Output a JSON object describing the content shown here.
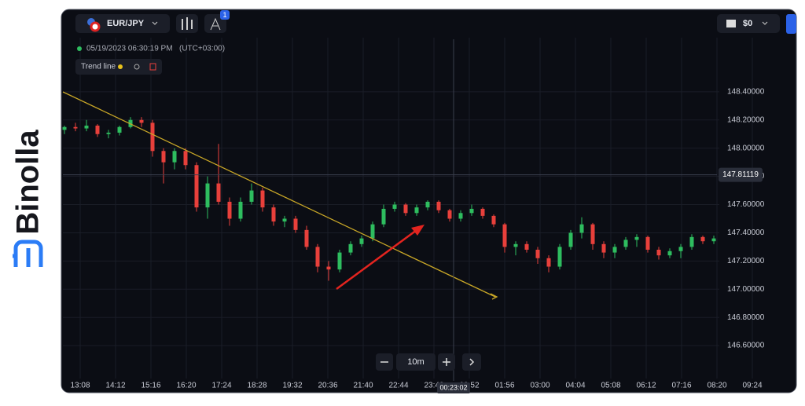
{
  "brand": "Binolla",
  "toolbar": {
    "pair": "EUR/JPY",
    "badge": "1",
    "balance": "$0"
  },
  "info": {
    "datetime": "05/19/2023 06:30:19 PM",
    "timezone": "(UTC+03:00)",
    "tool": "Trend line"
  },
  "zoom": {
    "interval": "10m"
  },
  "crosshair_time": "00:23:02",
  "chart_data": {
    "type": "candlestick",
    "up_color": "#2ebd5f",
    "down_color": "#e8403b",
    "ohlc": [
      [
        148.13,
        148.16,
        148.1,
        148.15
      ],
      [
        148.15,
        148.18,
        148.12,
        148.14
      ],
      [
        148.14,
        148.2,
        148.12,
        148.16
      ],
      [
        148.16,
        148.17,
        148.08,
        148.1
      ],
      [
        148.1,
        148.13,
        148.07,
        148.11
      ],
      [
        148.11,
        148.16,
        148.09,
        148.15
      ],
      [
        148.15,
        148.22,
        148.14,
        148.2
      ],
      [
        148.2,
        148.22,
        148.15,
        148.18
      ],
      [
        148.18,
        148.2,
        147.94,
        147.98
      ],
      [
        147.98,
        148.0,
        147.75,
        147.9
      ],
      [
        147.9,
        148.0,
        147.85,
        147.98
      ],
      [
        147.98,
        148.0,
        147.85,
        147.88
      ],
      [
        147.88,
        147.9,
        147.55,
        147.58
      ],
      [
        147.58,
        147.8,
        147.5,
        147.75
      ],
      [
        147.75,
        148.03,
        147.6,
        147.62
      ],
      [
        147.62,
        147.65,
        147.45,
        147.5
      ],
      [
        147.5,
        147.65,
        147.48,
        147.62
      ],
      [
        147.62,
        147.75,
        147.6,
        147.7
      ],
      [
        147.7,
        147.72,
        147.55,
        147.58
      ],
      [
        147.58,
        147.6,
        147.45,
        147.48
      ],
      [
        147.48,
        147.52,
        147.44,
        147.5
      ],
      [
        147.5,
        147.52,
        147.4,
        147.42
      ],
      [
        147.42,
        147.45,
        147.28,
        147.3
      ],
      [
        147.3,
        147.32,
        147.12,
        147.16
      ],
      [
        147.16,
        147.2,
        147.06,
        147.14
      ],
      [
        147.14,
        147.28,
        147.12,
        147.26
      ],
      [
        147.26,
        147.34,
        147.24,
        147.32
      ],
      [
        147.32,
        147.38,
        147.3,
        147.36
      ],
      [
        147.36,
        147.48,
        147.34,
        147.46
      ],
      [
        147.46,
        147.6,
        147.44,
        147.57
      ],
      [
        147.57,
        147.62,
        147.55,
        147.6
      ],
      [
        147.6,
        147.61,
        147.52,
        147.54
      ],
      [
        147.54,
        147.6,
        147.52,
        147.58
      ],
      [
        147.58,
        147.63,
        147.56,
        147.62
      ],
      [
        147.62,
        147.63,
        147.54,
        147.56
      ],
      [
        147.56,
        147.57,
        147.48,
        147.5
      ],
      [
        147.5,
        147.56,
        147.48,
        147.54
      ],
      [
        147.54,
        147.6,
        147.52,
        147.57
      ],
      [
        147.57,
        147.58,
        147.5,
        147.52
      ],
      [
        147.52,
        147.53,
        147.44,
        147.46
      ],
      [
        147.46,
        147.47,
        147.26,
        147.3
      ],
      [
        147.3,
        147.34,
        147.24,
        147.32
      ],
      [
        147.32,
        147.34,
        147.26,
        147.28
      ],
      [
        147.28,
        147.3,
        147.18,
        147.22
      ],
      [
        147.22,
        147.24,
        147.12,
        147.16
      ],
      [
        147.16,
        147.32,
        147.14,
        147.3
      ],
      [
        147.3,
        147.42,
        147.28,
        147.4
      ],
      [
        147.4,
        147.51,
        147.36,
        147.46
      ],
      [
        147.46,
        147.47,
        147.28,
        147.32
      ],
      [
        147.32,
        147.34,
        147.22,
        147.26
      ],
      [
        147.26,
        147.32,
        147.22,
        147.3
      ],
      [
        147.3,
        147.37,
        147.28,
        147.35
      ],
      [
        147.35,
        147.39,
        147.3,
        147.37
      ],
      [
        147.37,
        147.38,
        147.26,
        147.28
      ],
      [
        147.28,
        147.3,
        147.21,
        147.24
      ],
      [
        147.24,
        147.29,
        147.22,
        147.27
      ],
      [
        147.27,
        147.32,
        147.22,
        147.3
      ],
      [
        147.3,
        147.39,
        147.28,
        147.37
      ],
      [
        147.37,
        147.38,
        147.32,
        147.34
      ],
      [
        147.34,
        147.38,
        147.32,
        147.36
      ]
    ],
    "x_labels": [
      "13:08",
      "14:12",
      "15:16",
      "16:20",
      "17:24",
      "18:28",
      "19:32",
      "20:36",
      "21:40",
      "22:44",
      "23:48",
      "00:52",
      "01:56",
      "03:00",
      "04:04",
      "05:08",
      "06:12",
      "07:16",
      "08:20",
      "09:24"
    ],
    "ylim": [
      146.35,
      148.75
    ],
    "yticks": [
      {
        "value": 146.6,
        "label": "146.60000"
      },
      {
        "value": 146.8,
        "label": "146.80000"
      },
      {
        "value": 147,
        "label": "147.00000"
      },
      {
        "value": 147.2,
        "label": "147.20000"
      },
      {
        "value": 147.4,
        "label": "147.40000"
      },
      {
        "value": 147.6,
        "label": "147.60000"
      },
      {
        "value": 147.8,
        "label": "147.80000"
      },
      {
        "value": 148,
        "label": "148.00000"
      },
      {
        "value": 148.2,
        "label": "148.20000"
      },
      {
        "value": 148.4,
        "label": "148.40000"
      }
    ],
    "current_price": 147.81119,
    "grid": true
  }
}
